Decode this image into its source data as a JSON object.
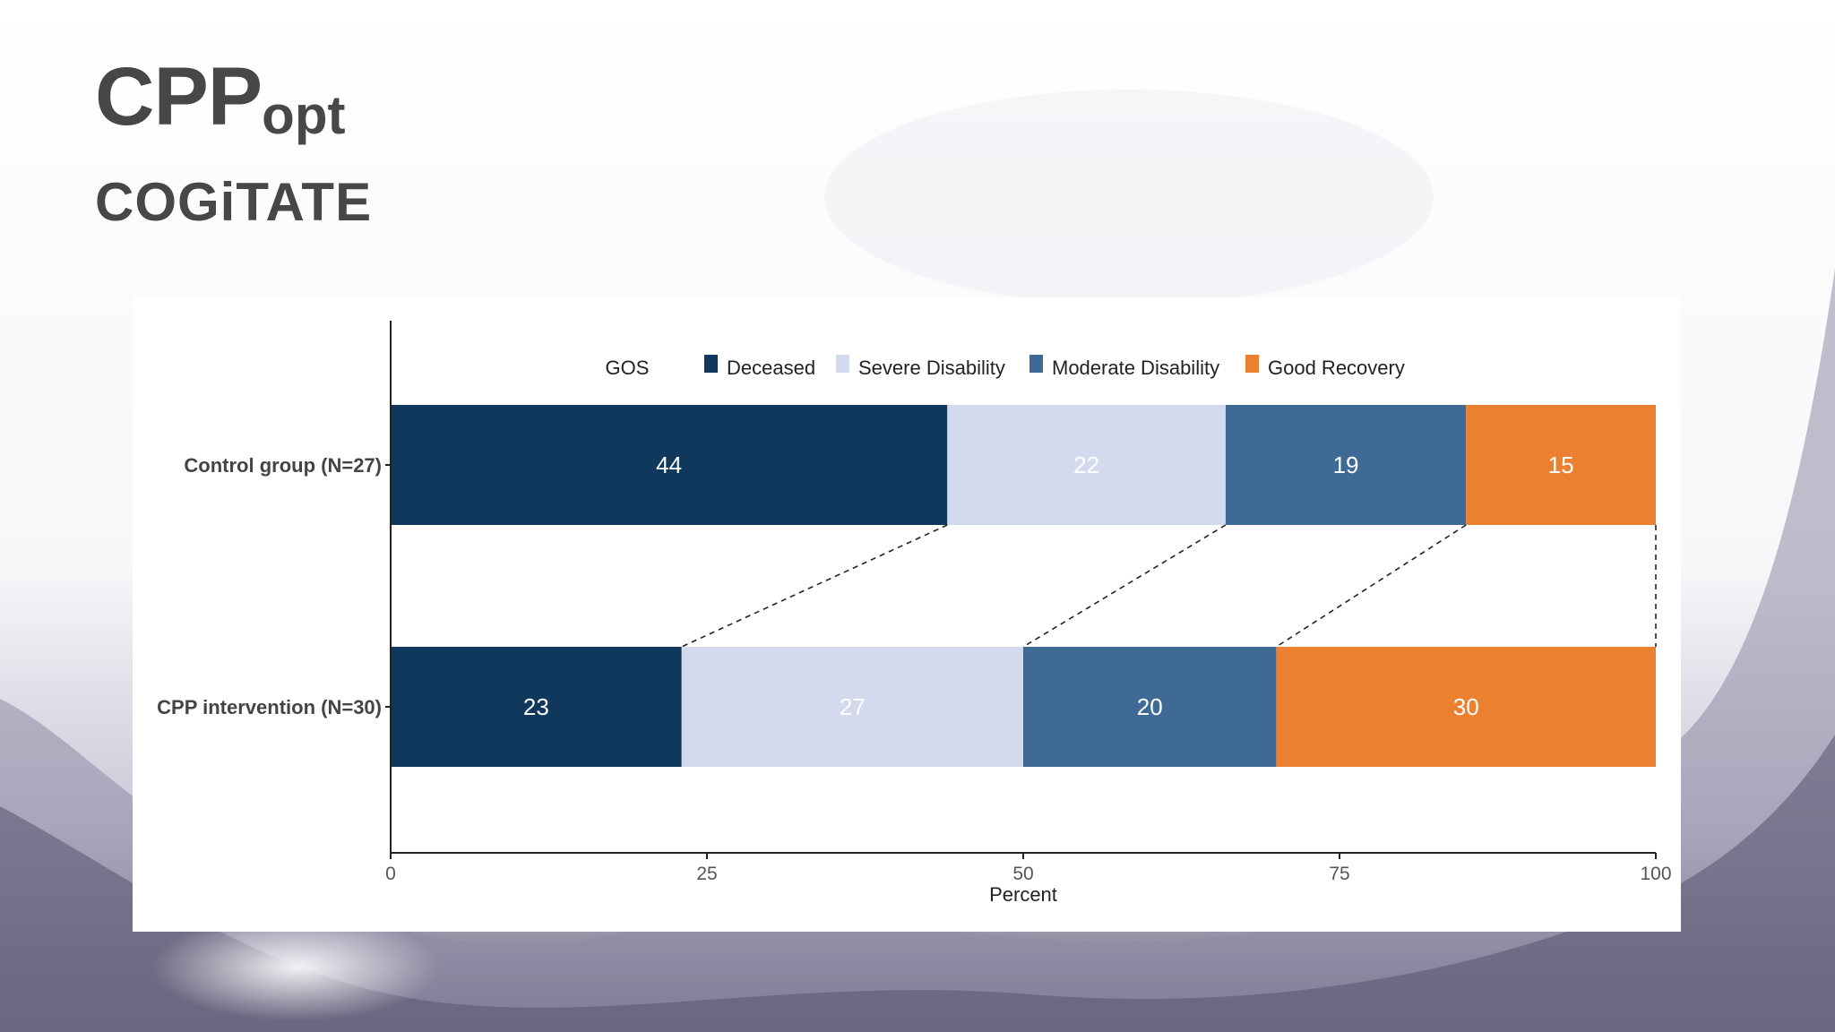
{
  "slide": {
    "title_main": "CPP",
    "title_sub": "opt",
    "subtitle": "COGiTATE"
  },
  "chart_data": {
    "type": "bar",
    "orientation": "horizontal",
    "stacked": true,
    "legend_title": "GOS",
    "legend_position": "top",
    "categories": [
      "Control group (N=27)",
      "CPP intervention (N=30)"
    ],
    "series": [
      {
        "name": "Deceased",
        "color": "#10375c",
        "label_color": "#ffffff",
        "values": [
          44,
          23
        ]
      },
      {
        "name": "Severe Disability",
        "color": "#d3daee",
        "label_color": "#ffffff",
        "values": [
          22,
          27
        ]
      },
      {
        "name": "Moderate Disability",
        "color": "#406a96",
        "label_color": "#ffffff",
        "values": [
          19,
          20
        ]
      },
      {
        "name": "Good Recovery",
        "color": "#ec8031",
        "label_color": "#ffffff",
        "values": [
          15,
          30
        ]
      }
    ],
    "xlabel": "Percent",
    "ylabel": "",
    "xlim": [
      0,
      100
    ],
    "xticks": [
      "0",
      "25",
      "50",
      "75",
      "100"
    ],
    "connectors": "dashed",
    "grid": false
  }
}
